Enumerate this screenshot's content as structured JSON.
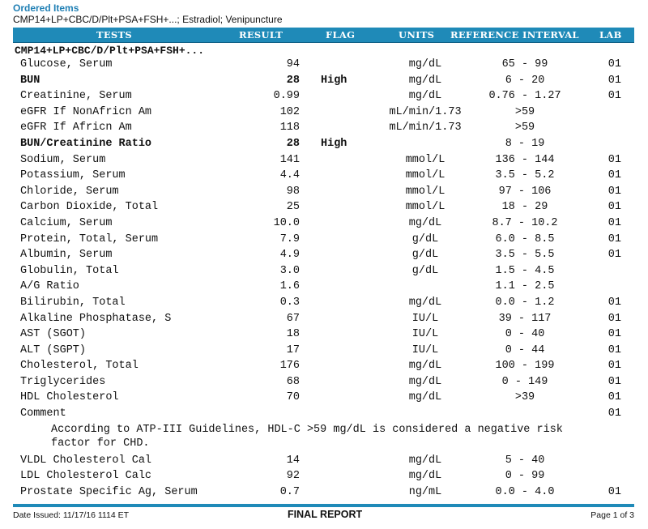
{
  "header": {
    "section_title": "Ordered Items",
    "ordered_items": "CMP14+LP+CBC/D/Plt+PSA+FSH+...; Estradiol; Venipuncture"
  },
  "columns": {
    "tests": "TESTS",
    "result": "RESULT",
    "flag": "FLAG",
    "units": "UNITS",
    "reference": "REFERENCE INTERVAL",
    "lab": "LAB"
  },
  "group_label": "CMP14+LP+CBC/D/Plt+PSA+FSH+...",
  "results": [
    {
      "test": "Glucose, Serum",
      "result": "94",
      "flag": "",
      "units": "mg/dL",
      "ref": "65 - 99",
      "lab": "01"
    },
    {
      "test": "BUN",
      "result": "28",
      "flag": "High",
      "units": "mg/dL",
      "ref": "6 - 20",
      "lab": "01"
    },
    {
      "test": "Creatinine, Serum",
      "result": "0.99",
      "flag": "",
      "units": "mg/dL",
      "ref": "0.76 - 1.27",
      "lab": "01"
    },
    {
      "test": "eGFR If NonAfricn Am",
      "result": "102",
      "flag": "",
      "units": "mL/min/1.73",
      "ref": ">59",
      "lab": ""
    },
    {
      "test": "eGFR If Africn Am",
      "result": "118",
      "flag": "",
      "units": "mL/min/1.73",
      "ref": ">59",
      "lab": ""
    },
    {
      "test": "BUN/Creatinine Ratio",
      "result": "28",
      "flag": "High",
      "units": "",
      "ref": "8 - 19",
      "lab": ""
    },
    {
      "test": "Sodium, Serum",
      "result": "141",
      "flag": "",
      "units": "mmol/L",
      "ref": "136 - 144",
      "lab": "01"
    },
    {
      "test": "Potassium, Serum",
      "result": "4.4",
      "flag": "",
      "units": "mmol/L",
      "ref": "3.5 - 5.2",
      "lab": "01"
    },
    {
      "test": "Chloride, Serum",
      "result": "98",
      "flag": "",
      "units": "mmol/L",
      "ref": "97 - 106",
      "lab": "01"
    },
    {
      "test": "Carbon Dioxide, Total",
      "result": "25",
      "flag": "",
      "units": "mmol/L",
      "ref": "18 - 29",
      "lab": "01"
    },
    {
      "test": "Calcium, Serum",
      "result": "10.0",
      "flag": "",
      "units": "mg/dL",
      "ref": "8.7 - 10.2",
      "lab": "01"
    },
    {
      "test": "Protein, Total, Serum",
      "result": "7.9",
      "flag": "",
      "units": "g/dL",
      "ref": "6.0 - 8.5",
      "lab": "01"
    },
    {
      "test": "Albumin, Serum",
      "result": "4.9",
      "flag": "",
      "units": "g/dL",
      "ref": "3.5 - 5.5",
      "lab": "01"
    },
    {
      "test": "Globulin, Total",
      "result": "3.0",
      "flag": "",
      "units": "g/dL",
      "ref": "1.5 - 4.5",
      "lab": ""
    },
    {
      "test": "A/G Ratio",
      "result": "1.6",
      "flag": "",
      "units": "",
      "ref": "1.1 - 2.5",
      "lab": ""
    },
    {
      "test": "Bilirubin, Total",
      "result": "0.3",
      "flag": "",
      "units": "mg/dL",
      "ref": "0.0 - 1.2",
      "lab": "01"
    },
    {
      "test": "Alkaline Phosphatase, S",
      "result": "67",
      "flag": "",
      "units": "IU/L",
      "ref": "39 - 117",
      "lab": "01"
    },
    {
      "test": "AST (SGOT)",
      "result": "18",
      "flag": "",
      "units": "IU/L",
      "ref": "0 - 40",
      "lab": "01"
    },
    {
      "test": "ALT (SGPT)",
      "result": "17",
      "flag": "",
      "units": "IU/L",
      "ref": "0 - 44",
      "lab": "01"
    },
    {
      "test": "Cholesterol, Total",
      "result": "176",
      "flag": "",
      "units": "mg/dL",
      "ref": "100 - 199",
      "lab": "01"
    },
    {
      "test": "Triglycerides",
      "result": "68",
      "flag": "",
      "units": "mg/dL",
      "ref": "0 - 149",
      "lab": "01"
    },
    {
      "test": "HDL Cholesterol",
      "result": "70",
      "flag": "",
      "units": "mg/dL",
      "ref": ">39",
      "lab": "01"
    },
    {
      "test": "Comment",
      "result": "",
      "flag": "",
      "units": "",
      "ref": "",
      "lab": "01"
    }
  ],
  "comment_text": "According to ATP-III Guidelines, HDL-C >59 mg/dL is considered a negative risk factor for CHD.",
  "results_after": [
    {
      "test": "VLDL Cholesterol Cal",
      "result": "14",
      "flag": "",
      "units": "mg/dL",
      "ref": "5 - 40",
      "lab": ""
    },
    {
      "test": "LDL Cholesterol Calc",
      "result": "92",
      "flag": "",
      "units": "mg/dL",
      "ref": "0 - 99",
      "lab": ""
    },
    {
      "test": "Prostate Specific Ag, Serum",
      "result": "0.7",
      "flag": "",
      "units": "ng/mL",
      "ref": "0.0 - 4.0",
      "lab": "01"
    }
  ],
  "bold_rows": [
    "BUN",
    "BUN/Creatinine Ratio"
  ],
  "footer": {
    "date_issued": "Date Issued: 11/17/16 1114 ET",
    "report_title": "FINAL REPORT",
    "page": "Page 1 of 3"
  },
  "colors": {
    "accent": "#1f8ab8",
    "title": "#1f7fb4"
  }
}
